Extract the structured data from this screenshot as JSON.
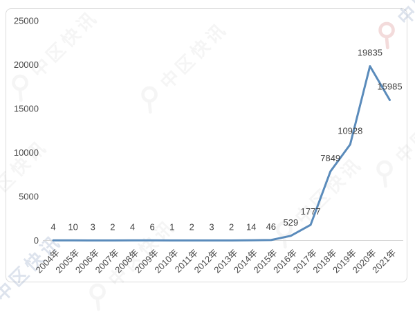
{
  "watermark": {
    "text": "中区快讯",
    "logo": "q-circle-icon"
  },
  "chart_data": {
    "type": "line",
    "title": "",
    "xlabel": "",
    "ylabel": "",
    "categories": [
      "2004年",
      "2005年",
      "2006年",
      "2007年",
      "2008年",
      "2009年",
      "2010年",
      "2011年",
      "2012年",
      "2013年",
      "2014年",
      "2015年",
      "2016年",
      "2017年",
      "2018年",
      "2019年",
      "2020年",
      "2021年"
    ],
    "values": [
      4,
      10,
      3,
      2,
      4,
      6,
      1,
      2,
      3,
      2,
      14,
      46,
      529,
      1777,
      7849,
      10928,
      19835,
      15985
    ],
    "ylim": [
      0,
      25000
    ],
    "y_ticks": [
      0,
      5000,
      10000,
      15000,
      20000,
      25000
    ],
    "grid": false,
    "legend_position": "none",
    "data_labels": true,
    "line_color": "#5a8bbb",
    "text_color": "#4a4a4a",
    "axis_line_color": "#d6d6d6"
  }
}
